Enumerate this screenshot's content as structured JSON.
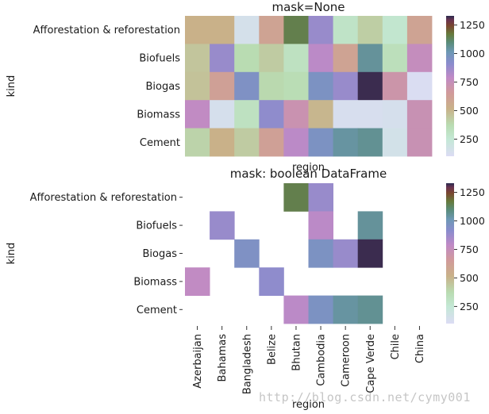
{
  "watermark": "http://blog.csdn.net/cymy001",
  "chart_data": [
    {
      "type": "heatmap",
      "title": "mask=None",
      "xlabel": "region",
      "ylabel": "kind",
      "x_tick_labels_shown": false,
      "categories_x": [
        "Azerbaijan",
        "Bahamas",
        "Bangladesh",
        "Belize",
        "Bhutan",
        "Cambodia",
        "Cameroon",
        "Cape Verde",
        "Chile",
        "China"
      ],
      "categories_y": [
        "Afforestation & reforestation",
        "Biofuels",
        "Biogas",
        "Biomass",
        "Cement"
      ],
      "values": [
        [
          520,
          520,
          150,
          600,
          1150,
          880,
          300,
          420,
          270,
          600
        ],
        [
          450,
          880,
          370,
          430,
          320,
          800,
          600,
          1050,
          340,
          760
        ],
        [
          460,
          620,
          950,
          380,
          360,
          960,
          880,
          1320,
          700,
          110
        ],
        [
          780,
          140,
          320,
          900,
          720,
          500,
          130,
          130,
          140,
          730
        ],
        [
          400,
          520,
          430,
          620,
          800,
          960,
          1040,
          1060,
          160,
          730
        ]
      ],
      "colorbar_ticks": [
        250,
        500,
        750,
        1000,
        1250
      ],
      "vmin": 100,
      "vmax": 1330,
      "colormap": "cubehelix-like (light lavender to dark navy)"
    },
    {
      "type": "heatmap",
      "title": "mask: boolean DataFrame",
      "xlabel": "region",
      "ylabel": "kind",
      "x_tick_labels_shown": true,
      "categories_x": [
        "Azerbaijan",
        "Bahamas",
        "Bangladesh",
        "Belize",
        "Bhutan",
        "Cambodia",
        "Cameroon",
        "Cape Verde",
        "Chile",
        "China"
      ],
      "categories_y": [
        "Afforestation & reforestation",
        "Biofuels",
        "Biogas",
        "Biomass",
        "Cement"
      ],
      "values": [
        [
          null,
          null,
          null,
          null,
          1150,
          880,
          null,
          null,
          null,
          null
        ],
        [
          null,
          880,
          null,
          null,
          null,
          800,
          null,
          1050,
          null,
          null
        ],
        [
          null,
          null,
          950,
          null,
          null,
          960,
          880,
          1320,
          null,
          null
        ],
        [
          780,
          null,
          null,
          900,
          null,
          null,
          null,
          null,
          null,
          null
        ],
        [
          null,
          null,
          null,
          null,
          800,
          960,
          1040,
          1060,
          null,
          null
        ]
      ],
      "colorbar_ticks": [
        250,
        500,
        750,
        1000,
        1250
      ],
      "vmin": 100,
      "vmax": 1330,
      "colormap": "cubehelix-like (light lavender to dark navy)"
    }
  ]
}
